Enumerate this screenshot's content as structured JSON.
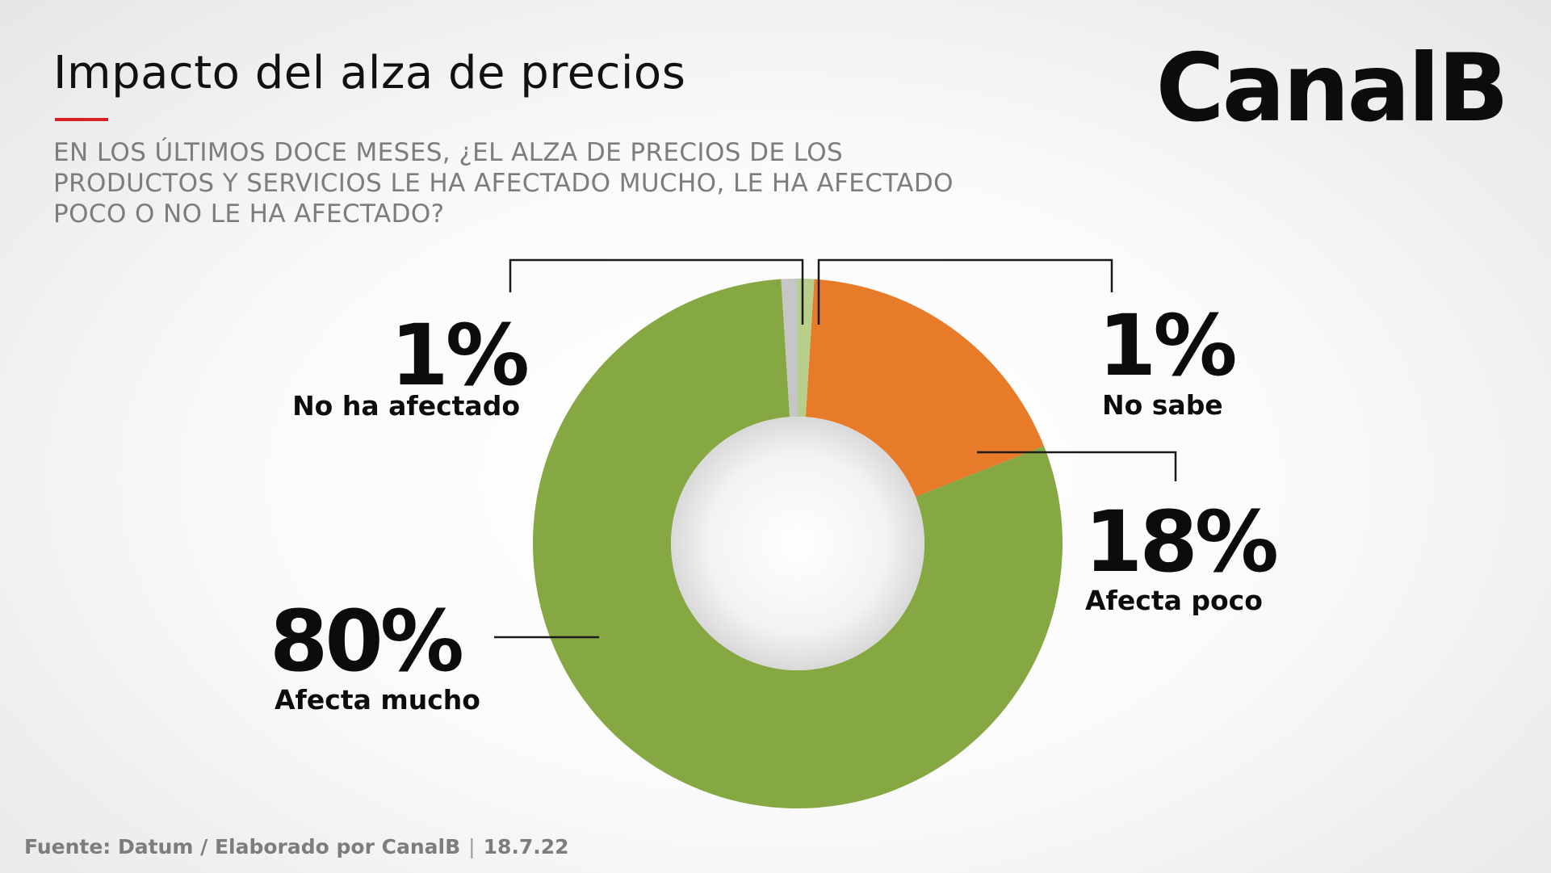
{
  "header": {
    "title": "Impacto del alza de precios",
    "logo": "CanalB",
    "question_lines": [
      "EN LOS ÚLTIMOS DOCE MESES, ¿EL ALZA DE PRECIOS DE LOS",
      "PRODUCTOS Y SERVICIOS LE HA AFECTADO MUCHO, LE HA AFECTADO",
      "POCO O NO LE HA AFECTADO?"
    ],
    "accent_color": "#d92027"
  },
  "footer": {
    "source": "Fuente: Datum / Elaborado por CanalB",
    "separator": "|",
    "date": "18.7.22"
  },
  "chart_data": {
    "type": "pie",
    "variant": "donut",
    "start": "top",
    "direction": "clockwise",
    "slices": [
      {
        "label": "No sabe",
        "value": 1,
        "value_label": "1%",
        "color": "#b8cf8c"
      },
      {
        "label": "Afecta poco",
        "value": 18,
        "value_label": "18%",
        "color": "#e87b2a"
      },
      {
        "label": "Afecta mucho",
        "value": 80,
        "value_label": "80%",
        "color": "#86a842"
      },
      {
        "label": "No ha afectado",
        "value": 1,
        "value_label": "1%",
        "color": "#c6c6c6"
      }
    ],
    "center_color": "#f2f2f2"
  }
}
